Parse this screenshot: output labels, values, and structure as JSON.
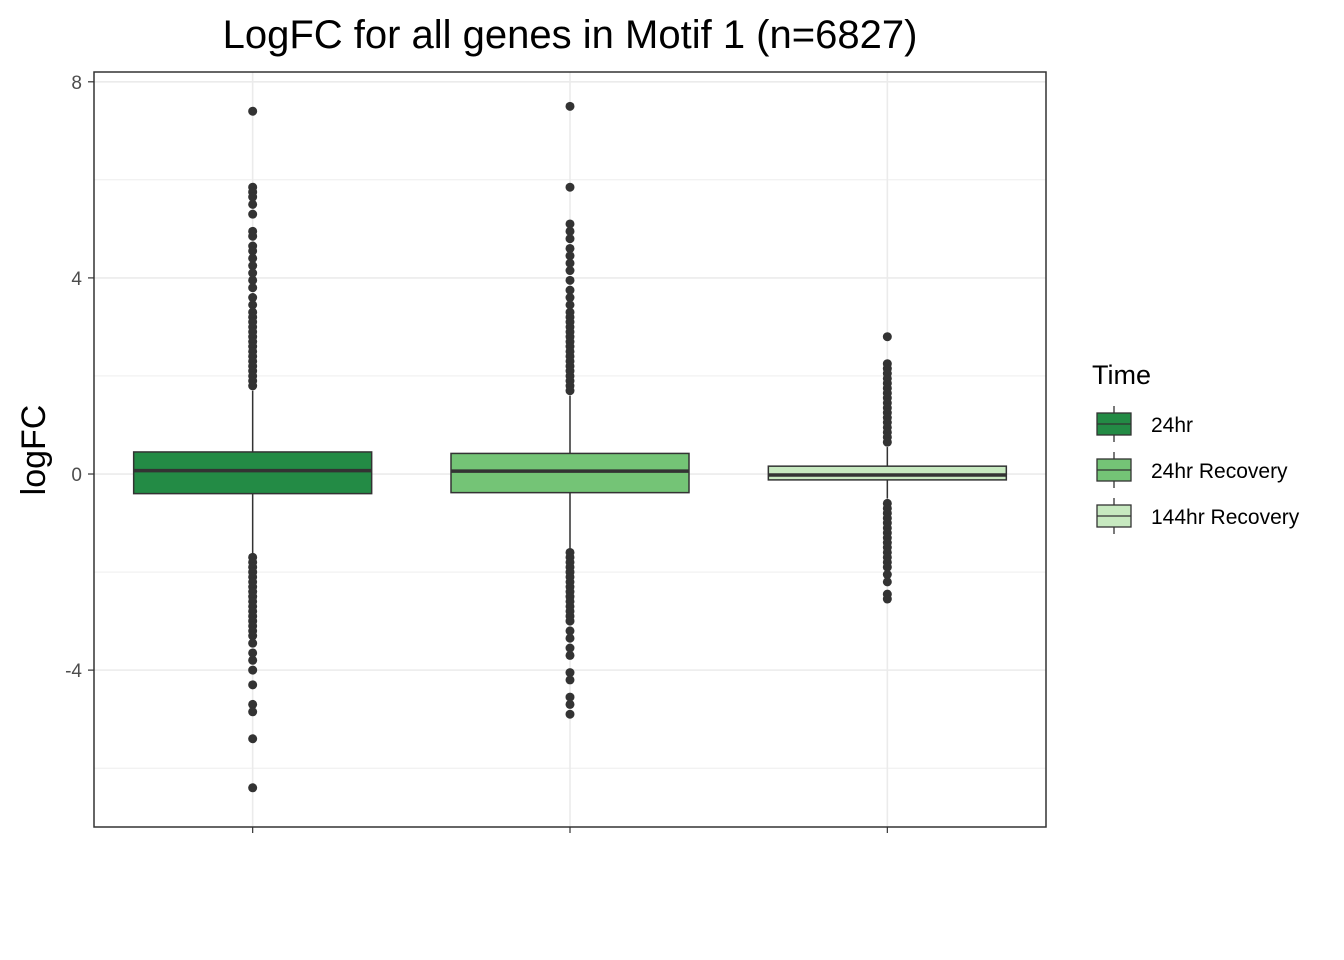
{
  "chart_data": {
    "type": "boxplot",
    "title": "LogFC for all genes in Motif 1 (n=6827)",
    "xlabel": "",
    "ylabel": "logFC",
    "ylim": [
      -7.2,
      8.2
    ],
    "yticks": [
      -4,
      0,
      4,
      8
    ],
    "grid": true,
    "legend": {
      "title": "Time",
      "position": "right"
    },
    "categories": [
      "24hr",
      "24hr Recovery",
      "144hr Recovery"
    ],
    "series": [
      {
        "name": "24hr",
        "color": "#238b45",
        "q1": -0.4,
        "median": 0.07,
        "q3": 0.45,
        "whisker_low": -1.65,
        "whisker_high": 1.7,
        "outliers": [
          7.4,
          5.85,
          5.75,
          5.65,
          5.5,
          5.3,
          4.95,
          4.85,
          4.65,
          4.55,
          4.4,
          4.25,
          4.1,
          3.95,
          3.8,
          3.6,
          3.45,
          3.3,
          3.2,
          3.1,
          3.0,
          2.9,
          2.8,
          2.7,
          2.6,
          2.5,
          2.4,
          2.3,
          2.2,
          2.1,
          2.0,
          1.9,
          1.8,
          -1.7,
          -1.8,
          -1.9,
          -2.0,
          -2.1,
          -2.2,
          -2.3,
          -2.4,
          -2.5,
          -2.6,
          -2.7,
          -2.8,
          -2.9,
          -3.0,
          -3.1,
          -3.2,
          -3.3,
          -3.45,
          -3.65,
          -3.8,
          -4.0,
          -4.3,
          -4.7,
          -4.85,
          -5.4,
          -6.4
        ]
      },
      {
        "name": "24hr Recovery",
        "color": "#74c476",
        "q1": -0.38,
        "median": 0.06,
        "q3": 0.42,
        "whisker_low": -1.55,
        "whisker_high": 1.6,
        "outliers": [
          7.5,
          5.85,
          5.1,
          4.95,
          4.8,
          4.6,
          4.45,
          4.3,
          4.15,
          3.95,
          3.75,
          3.6,
          3.45,
          3.3,
          3.2,
          3.1,
          3.0,
          2.9,
          2.8,
          2.7,
          2.6,
          2.5,
          2.4,
          2.3,
          2.2,
          2.1,
          2.0,
          1.9,
          1.8,
          1.7,
          -1.6,
          -1.7,
          -1.8,
          -1.9,
          -2.0,
          -2.1,
          -2.2,
          -2.3,
          -2.4,
          -2.5,
          -2.6,
          -2.7,
          -2.8,
          -2.9,
          -3.0,
          -3.2,
          -3.35,
          -3.55,
          -3.7,
          -4.05,
          -4.2,
          -4.55,
          -4.7,
          -4.9
        ]
      },
      {
        "name": "144hr Recovery",
        "color": "#c7e9c0",
        "q1": -0.12,
        "median": -0.02,
        "q3": 0.16,
        "whisker_low": -0.5,
        "whisker_high": 0.55,
        "outliers": [
          2.8,
          2.25,
          2.15,
          2.05,
          1.95,
          1.85,
          1.75,
          1.65,
          1.55,
          1.45,
          1.35,
          1.25,
          1.15,
          1.05,
          0.95,
          0.85,
          0.75,
          0.65,
          -0.6,
          -0.7,
          -0.8,
          -0.9,
          -1.0,
          -1.1,
          -1.2,
          -1.3,
          -1.4,
          -1.5,
          -1.6,
          -1.7,
          -1.8,
          -1.9,
          -2.05,
          -2.2,
          -2.45,
          -2.55
        ]
      }
    ]
  }
}
